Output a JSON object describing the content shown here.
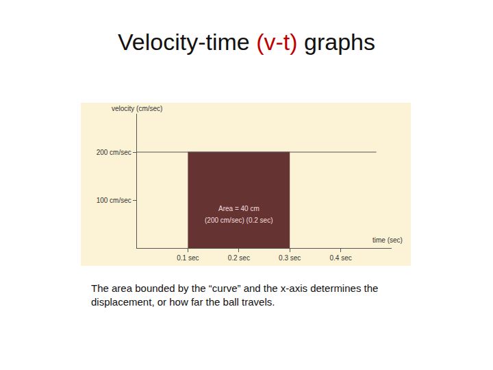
{
  "chart_data": {
    "type": "line",
    "title": "Velocity-time (v-t) graphs",
    "title_highlight": {
      "text": "(v-t)",
      "color": "#c00000"
    },
    "caption": "The area bounded by the “curve” and the x-axis determines the displacement, or how far the ball travels.",
    "x_label": "time (sec)",
    "y_label": "velocity (cm/sec)",
    "xlim": [
      0,
      0.5
    ],
    "xticks": [
      {
        "value": 0.1,
        "label": "0.1 sec"
      },
      {
        "value": 0.2,
        "label": "0.2 sec"
      },
      {
        "value": 0.3,
        "label": "0.3 sec"
      },
      {
        "value": 0.4,
        "label": "0.4 sec"
      }
    ],
    "ylim": [
      0,
      280
    ],
    "yticks": [
      {
        "value": 100,
        "label": "100 cm/sec"
      },
      {
        "value": 200,
        "label": "200 cm/sec"
      }
    ],
    "grid": false,
    "series": [
      {
        "type": "area",
        "color": "#663333",
        "x": [
          0.1,
          0.3
        ],
        "values": [
          200,
          200
        ]
      },
      {
        "type": "line",
        "color": "#555555",
        "x": [
          0,
          0.47
        ],
        "values": [
          200,
          200
        ]
      }
    ],
    "annotations": [
      {
        "text": "Area = 40 cm",
        "x": 0.2,
        "y": 82
      },
      {
        "text": "(200 cm/sec) (0.2 sec)",
        "x": 0.2,
        "y": 58
      }
    ]
  }
}
